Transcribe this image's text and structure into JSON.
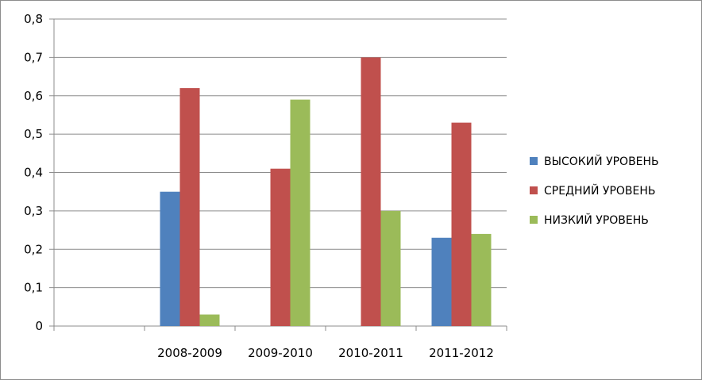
{
  "chart_data": {
    "type": "bar",
    "categories": [
      "",
      "2008-2009",
      "2009-2010",
      "2010-2011",
      "2011-2012"
    ],
    "series": [
      {
        "name": "ВЫСОКИЙ УРОВЕНЬ",
        "color": "#4f81bd",
        "values": [
          0,
          0.35,
          0,
          0,
          0.23
        ]
      },
      {
        "name": "СРЕДНИЙ УРОВЕНЬ",
        "color": "#c0504d",
        "values": [
          0,
          0.62,
          0.41,
          0.7,
          0.53
        ]
      },
      {
        "name": "НИЗКИЙ УРОВЕНЬ",
        "color": "#9bbb59",
        "values": [
          0,
          0.03,
          0.59,
          0.3,
          0.24
        ]
      }
    ],
    "yticks": [
      "0",
      "0,1",
      "0,2",
      "0,3",
      "0,4",
      "0,5",
      "0,6",
      "0,7",
      "0,8"
    ],
    "ylim": [
      0,
      0.8
    ],
    "grid": true,
    "legend_position": "right",
    "title": "",
    "xlabel": "",
    "ylabel": ""
  }
}
